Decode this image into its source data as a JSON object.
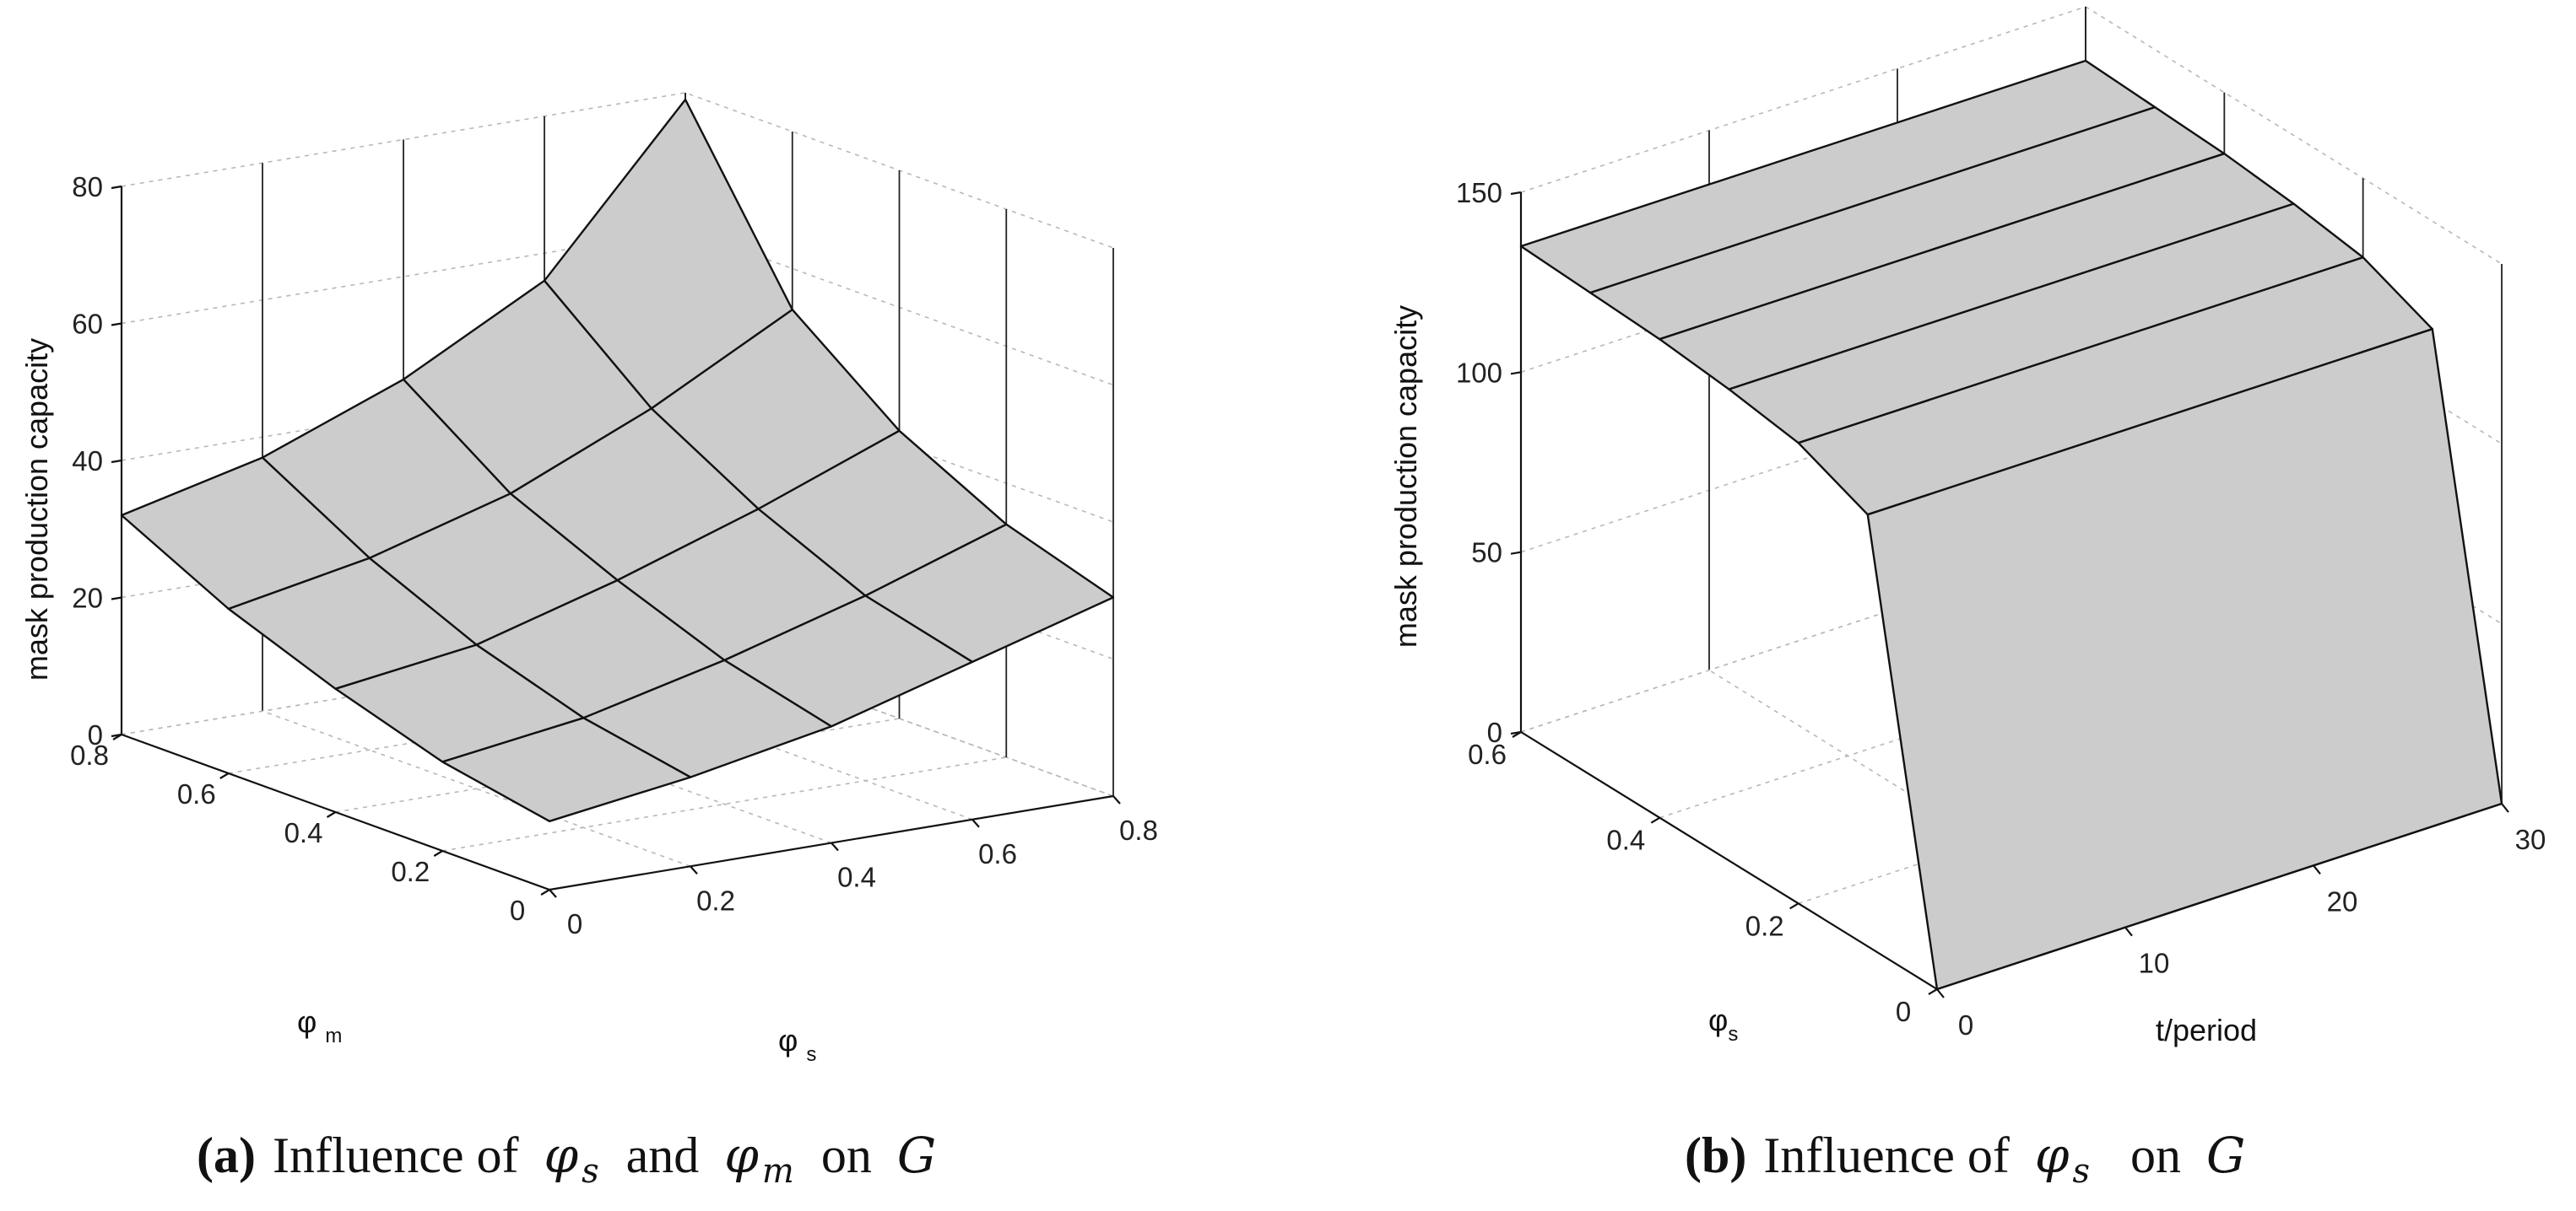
{
  "chart_data": [
    {
      "type": "surface",
      "zlabel": "mask production capacity",
      "xlabel": "φs",
      "ylabel": "φm",
      "x": [
        0,
        0.2,
        0.4,
        0.6,
        0.8
      ],
      "y": [
        0,
        0.2,
        0.4,
        0.6,
        0.8
      ],
      "xticks": [
        "0",
        "0.2",
        "0.4",
        "0.6",
        "0.8"
      ],
      "yticks": [
        "0",
        "0.2",
        "0.4",
        "0.6",
        "0.8"
      ],
      "zticks": [
        "0",
        "20",
        "40",
        "60",
        "80"
      ],
      "zlim": [
        0,
        80
      ],
      "z": [
        [
          10,
          13,
          17,
          23,
          29
        ],
        [
          13,
          16,
          21,
          27,
          34
        ],
        [
          18,
          21,
          27,
          34,
          42
        ],
        [
          24,
          28,
          34,
          43,
          54
        ],
        [
          32,
          37,
          45,
          56,
          79
        ]
      ],
      "grid": true,
      "caption": {
        "label": "(a)",
        "text": "Influence of",
        "sym1": "φ",
        "sub1": "s",
        "and": "and",
        "sym2": "φ",
        "sub2": "m",
        "on": "on",
        "target": "G"
      }
    },
    {
      "type": "surface",
      "zlabel": "mask production capacity",
      "xlabel": "t/period",
      "ylabel": "φs",
      "x": [
        0,
        5,
        10,
        15,
        20,
        25,
        30
      ],
      "y": [
        0,
        0.1,
        0.2,
        0.3,
        0.4,
        0.5,
        0.6
      ],
      "xticks": [
        "0",
        "10",
        "20",
        "30"
      ],
      "yticks": [
        "0",
        "0.2",
        "0.4",
        "0.6"
      ],
      "zticks": [
        "0",
        "50",
        "100",
        "150"
      ],
      "zlim": [
        0,
        150
      ],
      "z_profile_along_phi": [
        0,
        120,
        128,
        131,
        133,
        134,
        135
      ],
      "grid": true,
      "caption": {
        "label": "(b)",
        "text": "Influence of",
        "sym1": "φ",
        "sub1": "s",
        "on": "on",
        "target": "G"
      }
    }
  ]
}
